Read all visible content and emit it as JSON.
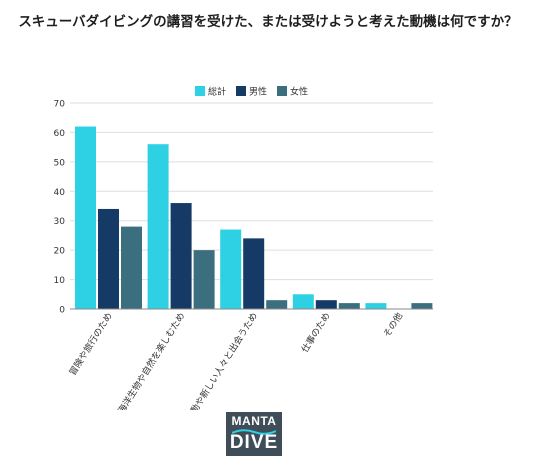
{
  "title": "スキューバダイビングの講習を受けた、または受けようと考えた動機は何ですか？",
  "colors": {
    "total": "#2ed1e4",
    "male": "#163a66",
    "female": "#3b6f7f",
    "grid": "#dddddd",
    "axis": "#444444"
  },
  "logo": {
    "line1": "MANTA",
    "line2": "DIVE",
    "accent": "#2ed1e4"
  },
  "chart_data": {
    "type": "bar",
    "title": "スキューバダイビングの講習を受けた、または受けようと考えた動機は何ですか？",
    "categories": [
      "冒険や旅行のため",
      "海洋生物や自然を楽しむため",
      "社交活動や新しい人々と出会うため",
      "仕事のため",
      "その他"
    ],
    "series": [
      {
        "name": "総計",
        "values": [
          62,
          56,
          27,
          5,
          2
        ]
      },
      {
        "name": "男性",
        "values": [
          34,
          36,
          24,
          3,
          0
        ]
      },
      {
        "name": "女性",
        "values": [
          28,
          20,
          3,
          2,
          2
        ]
      }
    ],
    "ylim": [
      0,
      70
    ],
    "yticks": [
      0,
      10,
      20,
      30,
      40,
      50,
      60,
      70
    ],
    "grid": true,
    "legend": "top-center"
  }
}
